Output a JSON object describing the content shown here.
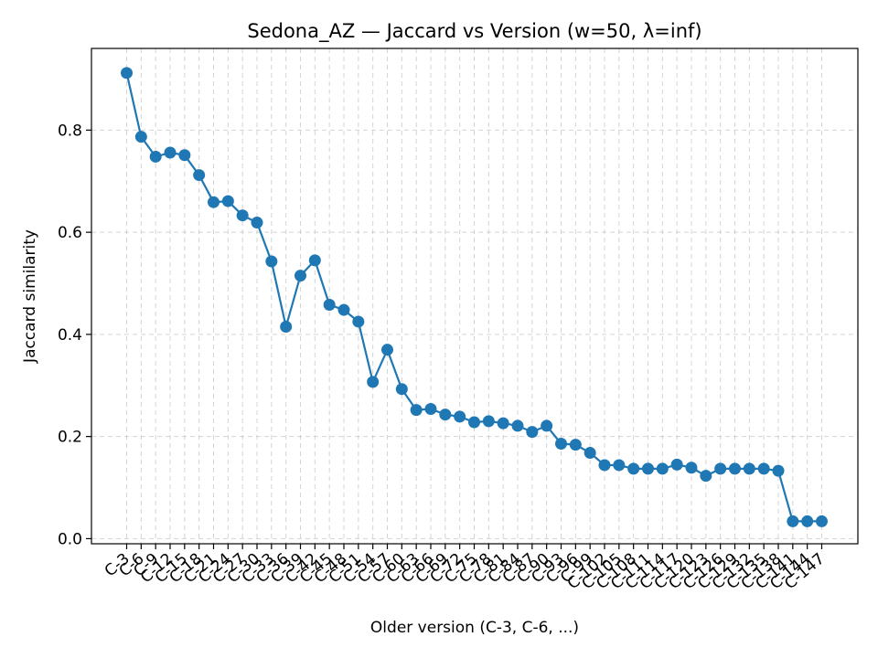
{
  "chart_data": {
    "type": "line",
    "title": "Sedona_AZ — Jaccard vs Version (w=50, λ=inf)",
    "xlabel": "Older version (C-3, C-6, ...)",
    "ylabel": "Jaccard similarity",
    "ylim": [
      -0.01,
      0.96
    ],
    "yticks": [
      0.0,
      0.2,
      0.4,
      0.6,
      0.8
    ],
    "ytick_labels": [
      "0.0",
      "0.2",
      "0.4",
      "0.6",
      "0.8"
    ],
    "grid": true,
    "color": "#1f77b4",
    "categories": [
      "C-3",
      "C-6",
      "C-9",
      "C-12",
      "C-15",
      "C-18",
      "C-21",
      "C-24",
      "C-27",
      "C-30",
      "C-33",
      "C-36",
      "C-39",
      "C-42",
      "C-45",
      "C-48",
      "C-51",
      "C-54",
      "C-57",
      "C-60",
      "C-63",
      "C-66",
      "C-69",
      "C-72",
      "C-75",
      "C-78",
      "C-81",
      "C-84",
      "C-87",
      "C-90",
      "C-93",
      "C-96",
      "C-99",
      "C-102",
      "C-105",
      "C-108",
      "C-111",
      "C-114",
      "C-117",
      "C-120",
      "C-123",
      "C-126",
      "C-129",
      "C-132",
      "C-135",
      "C-138",
      "C-141",
      "C-144",
      "C-147"
    ],
    "values": [
      0.912,
      0.787,
      0.748,
      0.756,
      0.751,
      0.712,
      0.659,
      0.661,
      0.633,
      0.619,
      0.543,
      0.415,
      0.515,
      0.545,
      0.458,
      0.448,
      0.425,
      0.307,
      0.37,
      0.293,
      0.252,
      0.254,
      0.243,
      0.239,
      0.228,
      0.23,
      0.226,
      0.221,
      0.209,
      0.221,
      0.186,
      0.184,
      0.168,
      0.144,
      0.144,
      0.137,
      0.137,
      0.137,
      0.145,
      0.139,
      0.123,
      0.137,
      0.137,
      0.137,
      0.137,
      0.133,
      0.034,
      0.034,
      0.034
    ]
  }
}
